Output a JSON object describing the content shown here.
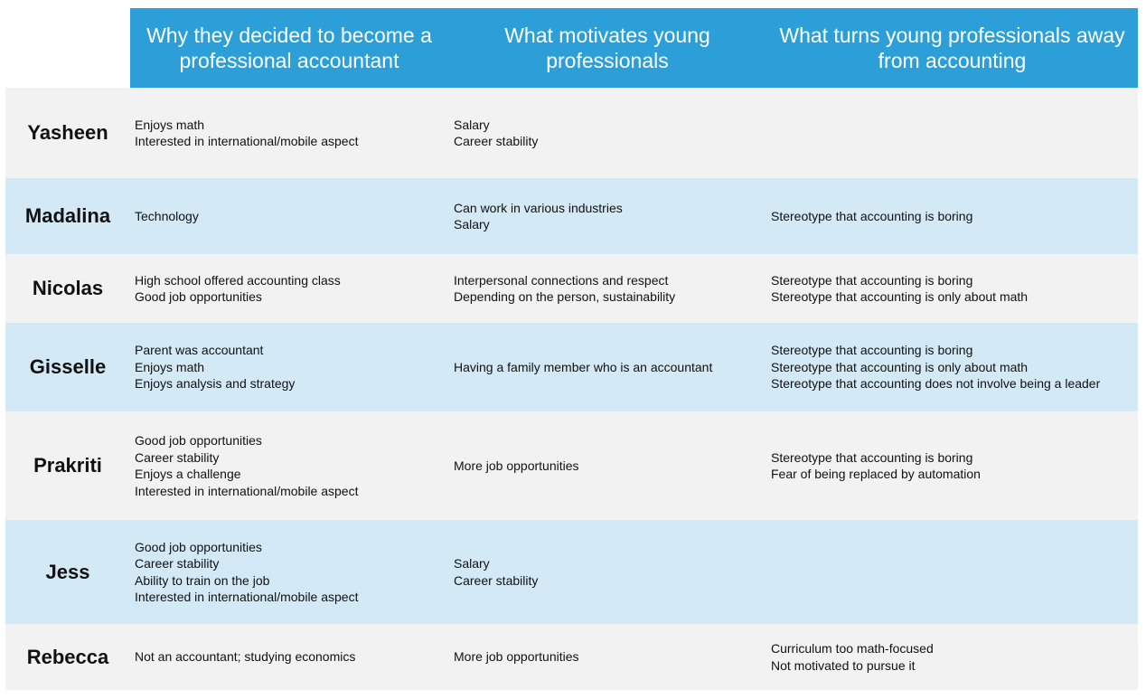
{
  "headers": {
    "col1": "Why they decided to become a\nprofessional accountant",
    "col2": "What motivates young\nprofessionals",
    "col3": "What turns young professionals away\nfrom accounting"
  },
  "rows": [
    {
      "name": "Yasheen",
      "why": [
        "Enjoys math",
        "Interested in international/mobile aspect"
      ],
      "motivates": [
        "Salary",
        "Career stability"
      ],
      "turns_away": []
    },
    {
      "name": "Madalina",
      "why": [
        "Technology"
      ],
      "motivates": [
        "Can work in various industries",
        "Salary"
      ],
      "turns_away": [
        "Stereotype that accounting is boring"
      ]
    },
    {
      "name": "Nicolas",
      "why": [
        "High school offered accounting class",
        "Good job opportunities"
      ],
      "motivates": [
        "Interpersonal connections and respect",
        "Depending on the person, sustainability"
      ],
      "turns_away": [
        "Stereotype that accounting is boring",
        "Stereotype that accounting is only about math"
      ]
    },
    {
      "name": "Gisselle",
      "why": [
        "Parent was accountant",
        "Enjoys math",
        "Enjoys analysis and strategy"
      ],
      "motivates": [
        "Having a family member who is an accountant"
      ],
      "turns_away": [
        "Stereotype that accounting is boring",
        "Stereotype that accounting is only about math",
        "Stereotype that accounting does not involve being a leader"
      ]
    },
    {
      "name": "Prakriti",
      "why": [
        "Good job opportunities",
        "Career stability",
        "Enjoys a challenge",
        "Interested in international/mobile aspect"
      ],
      "motivates": [
        "More job opportunities"
      ],
      "turns_away": [
        "Stereotype that accounting is boring",
        "Fear of being replaced by automation"
      ]
    },
    {
      "name": "Jess",
      "why": [
        "Good job opportunities",
        "Career stability",
        "Ability to train on the job",
        "Interested in international/mobile aspect"
      ],
      "motivates": [
        "Salary",
        "Career stability"
      ],
      "turns_away": []
    },
    {
      "name": "Rebecca",
      "why": [
        "Not an accountant; studying economics"
      ],
      "motivates": [
        "More job opportunities"
      ],
      "turns_away": [
        "Curriculum too math-focused",
        "Not motivated to pursue it"
      ]
    }
  ],
  "colors": {
    "header_bg": "#2c9fd9",
    "row_gray": "#f2f2f2",
    "row_blue": "#d3e9f6"
  }
}
